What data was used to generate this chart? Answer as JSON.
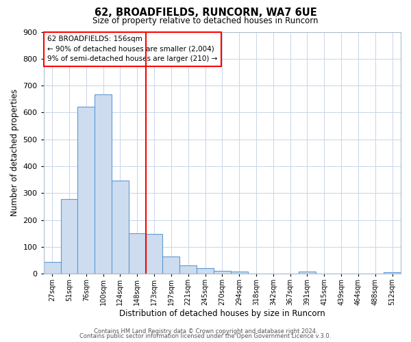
{
  "title": "62, BROADFIELDS, RUNCORN, WA7 6UE",
  "subtitle": "Size of property relative to detached houses in Runcorn",
  "xlabel": "Distribution of detached houses by size in Runcorn",
  "ylabel": "Number of detached properties",
  "footer_line1": "Contains HM Land Registry data © Crown copyright and database right 2024.",
  "footer_line2": "Contains public sector information licensed under the Open Government Licence v.3.0.",
  "annotation_line1": "62 BROADFIELDS: 156sqm",
  "annotation_line2": "← 90% of detached houses are smaller (2,004)",
  "annotation_line3": "9% of semi-detached houses are larger (210) →",
  "bar_color": "#cddcee",
  "bar_edge_color": "#5b9bd5",
  "ref_line_color": "red",
  "ref_bar_index": 5,
  "categories": [
    "27sqm",
    "51sqm",
    "76sqm",
    "100sqm",
    "124sqm",
    "148sqm",
    "173sqm",
    "197sqm",
    "221sqm",
    "245sqm",
    "270sqm",
    "294sqm",
    "318sqm",
    "342sqm",
    "367sqm",
    "391sqm",
    "415sqm",
    "439sqm",
    "464sqm",
    "488sqm",
    "512sqm"
  ],
  "bar_heights": [
    44,
    278,
    622,
    668,
    347,
    150,
    147,
    65,
    30,
    20,
    10,
    8,
    0,
    0,
    0,
    8,
    0,
    0,
    0,
    0,
    5
  ],
  "ylim": [
    0,
    900
  ],
  "yticks": [
    0,
    100,
    200,
    300,
    400,
    500,
    600,
    700,
    800,
    900
  ],
  "background_color": "#ffffff",
  "grid_color": "#c8d4e8"
}
